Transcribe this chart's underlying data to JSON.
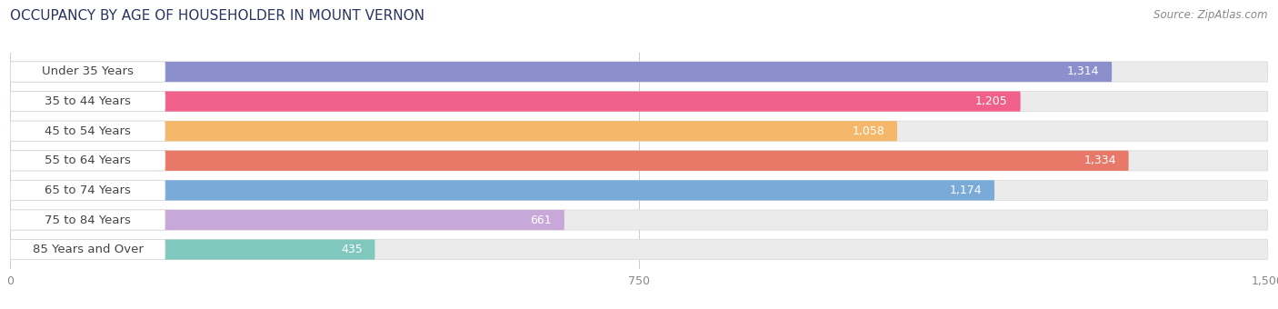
{
  "title": "OCCUPANCY BY AGE OF HOUSEHOLDER IN MOUNT VERNON",
  "source": "Source: ZipAtlas.com",
  "categories": [
    "Under 35 Years",
    "35 to 44 Years",
    "45 to 54 Years",
    "55 to 64 Years",
    "65 to 74 Years",
    "75 to 84 Years",
    "85 Years and Over"
  ],
  "values": [
    1314,
    1205,
    1058,
    1334,
    1174,
    661,
    435
  ],
  "bar_colors": [
    "#8b8fcc",
    "#f0608a",
    "#f5b86a",
    "#e87868",
    "#7aaad8",
    "#c8a8d8",
    "#80c8be"
  ],
  "xlim": [
    0,
    1500
  ],
  "xticks": [
    0,
    750,
    1500
  ],
  "background_color": "#ffffff",
  "row_bg_color": "#ebebeb",
  "title_fontsize": 11,
  "label_fontsize": 9.5,
  "value_fontsize": 9
}
